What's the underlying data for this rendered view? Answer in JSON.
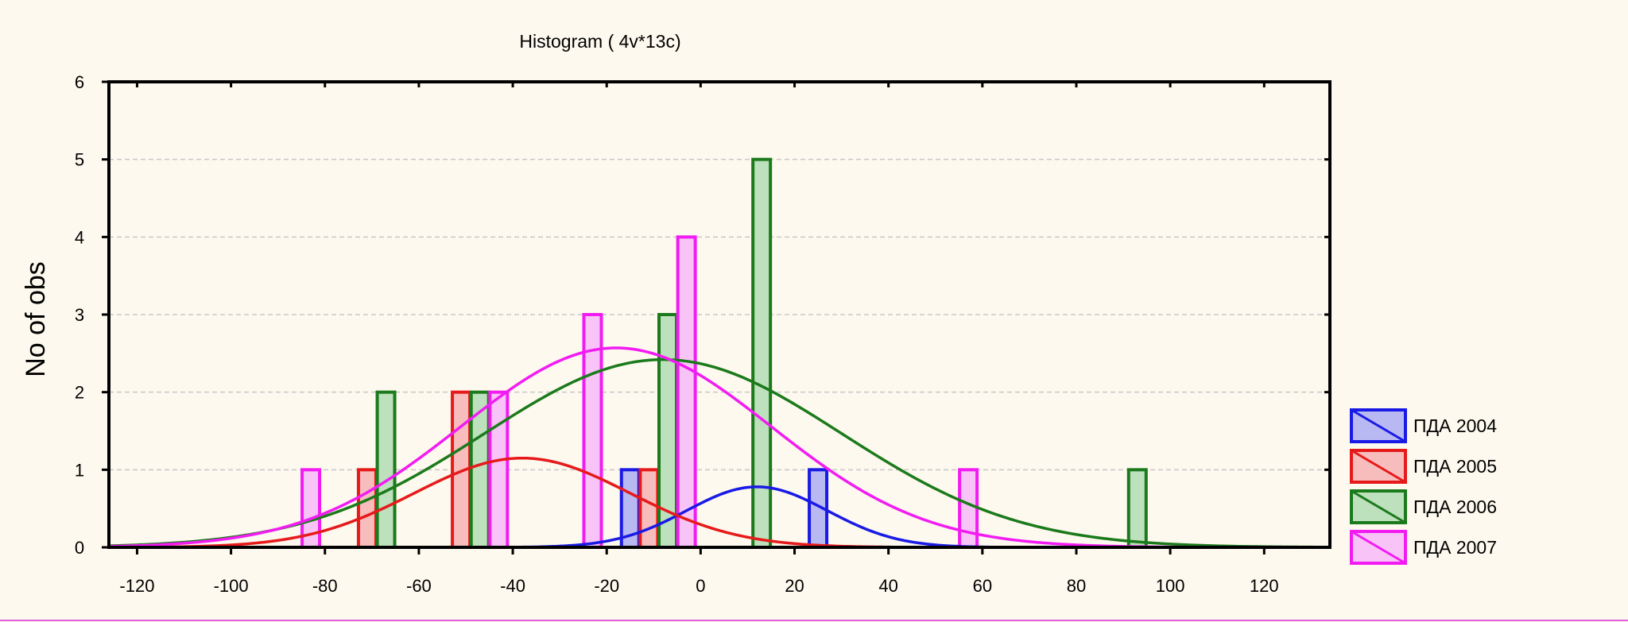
{
  "chart_data": {
    "type": "bar",
    "title": "Histogram ( 4v*13c)",
    "ylabel": "No of obs",
    "xlabel": "",
    "xlim": [
      -126,
      134
    ],
    "ylim": [
      0,
      6
    ],
    "x_ticks": [
      -120,
      -100,
      -80,
      -60,
      -40,
      -20,
      0,
      20,
      40,
      60,
      80,
      100,
      120
    ],
    "y_ticks": [
      0,
      1,
      2,
      3,
      4,
      5,
      6
    ],
    "bin_width": 20,
    "grid": "horizontal dashed",
    "legend_position": "right",
    "series": [
      {
        "name": "ПДА 2004",
        "color": "#1a1ae6",
        "fill": "#b8b8f2",
        "bars": [
          {
            "x": -15,
            "y": 1
          },
          {
            "x": 25,
            "y": 1
          }
        ],
        "normal_fit": {
          "mean": 12,
          "sd": 15,
          "peak": 0.78
        }
      },
      {
        "name": "ПДА 2005",
        "color": "#e61a1a",
        "fill": "#f7bcbc",
        "bars": [
          {
            "x": -71,
            "y": 1
          },
          {
            "x": -51,
            "y": 2
          },
          {
            "x": -11,
            "y": 1
          }
        ],
        "normal_fit": {
          "mean": -38,
          "sd": 23,
          "peak": 1.15
        }
      },
      {
        "name": "ПДА 2006",
        "color": "#1b7a1b",
        "fill": "#bde0bd",
        "bars": [
          {
            "x": -67,
            "y": 2
          },
          {
            "x": -47,
            "y": 2
          },
          {
            "x": -7,
            "y": 3
          },
          {
            "x": 13,
            "y": 5
          },
          {
            "x": 93,
            "y": 1
          }
        ],
        "normal_fit": {
          "mean": -8,
          "sd": 38,
          "peak": 2.42
        }
      },
      {
        "name": "ПДА 2007",
        "color": "#f21cf2",
        "fill": "#f8c4f8",
        "bars": [
          {
            "x": -83,
            "y": 1
          },
          {
            "x": -43,
            "y": 2
          },
          {
            "x": -23,
            "y": 3
          },
          {
            "x": -3,
            "y": 4
          },
          {
            "x": 57,
            "y": 1
          }
        ],
        "normal_fit": {
          "mean": -18,
          "sd": 33,
          "peak": 2.57
        }
      }
    ]
  }
}
